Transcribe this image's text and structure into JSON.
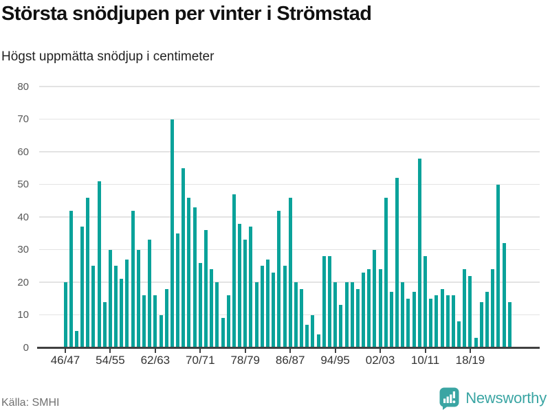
{
  "header": {
    "title": "Största snödjupen per vinter i Strömstad",
    "subtitle": "Högst uppmätta snödjup i centimeter"
  },
  "chart_data": {
    "type": "bar",
    "title": "Största snödjupen per vinter i Strömstad",
    "subtitle": "Högst uppmätta snödjup i centimeter",
    "unit": "cm",
    "categories": [
      "46/47",
      "47/48",
      "48/49",
      "49/50",
      "50/51",
      "51/52",
      "52/53",
      "53/54",
      "54/55",
      "55/56",
      "56/57",
      "57/58",
      "58/59",
      "59/60",
      "60/61",
      "61/62",
      "62/63",
      "63/64",
      "64/65",
      "65/66",
      "66/67",
      "67/68",
      "68/69",
      "69/70",
      "70/71",
      "71/72",
      "72/73",
      "73/74",
      "74/75",
      "75/76",
      "76/77",
      "77/78",
      "78/79",
      "79/80",
      "80/81",
      "81/82",
      "82/83",
      "83/84",
      "84/85",
      "85/86",
      "86/87",
      "87/88",
      "88/89",
      "89/90",
      "90/91",
      "91/92",
      "92/93",
      "93/94",
      "94/95",
      "95/96",
      "96/97",
      "97/98",
      "98/99",
      "99/00",
      "00/01",
      "01/02",
      "02/03",
      "03/04",
      "04/05",
      "05/06",
      "06/07",
      "07/08",
      "08/09",
      "09/10",
      "10/11",
      "11/12",
      "12/13",
      "13/14",
      "14/15",
      "15/16",
      "16/17",
      "17/18",
      "18/19",
      "19/20",
      "20/21",
      "21/22",
      "22/23",
      "23/24",
      "24/25",
      "25/26"
    ],
    "values": [
      20,
      42,
      5,
      37,
      46,
      25,
      51,
      14,
      30,
      25,
      21,
      27,
      42,
      30,
      16,
      33,
      16,
      10,
      18,
      70,
      35,
      55,
      46,
      43,
      26,
      36,
      24,
      20,
      9,
      16,
      47,
      38,
      33,
      37,
      20,
      25,
      27,
      23,
      42,
      25,
      46,
      20,
      18,
      7,
      10,
      4,
      28,
      28,
      20,
      13,
      20,
      20,
      18,
      23,
      24,
      30,
      24,
      46,
      17,
      52,
      20,
      15,
      17,
      58,
      28,
      15,
      16,
      18,
      16,
      16,
      8,
      24,
      22,
      3,
      14,
      17,
      24,
      50,
      32,
      14
    ],
    "ylim": [
      0,
      80
    ],
    "yticks": [
      0,
      10,
      20,
      30,
      40,
      50,
      60,
      70,
      80
    ],
    "xtick_labels": [
      "46/47",
      "54/55",
      "62/63",
      "70/71",
      "78/79",
      "86/87",
      "94/95",
      "02/03",
      "10/11",
      "18/19"
    ],
    "xtick_every": 8,
    "grid": "horizontal",
    "legend": "none",
    "bar_color": "#0aa29a"
  },
  "footer": {
    "source": "Källa: SMHI",
    "brand": "Newsworthy",
    "brand_color": "#3aa5a3"
  }
}
